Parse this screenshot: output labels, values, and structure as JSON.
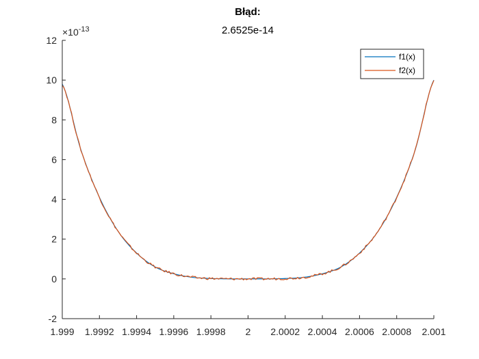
{
  "chart_data": {
    "type": "line",
    "title": "Błąd:",
    "subtitle": "2.6525e-14",
    "xlabel": "",
    "ylabel": "",
    "xlim": [
      1.999,
      2.001
    ],
    "ylim": [
      -2,
      12
    ],
    "y_exponent_label": "×10",
    "y_exponent_power": "-13",
    "x_ticks": [
      1.999,
      1.9992,
      1.9994,
      1.9996,
      1.9998,
      2,
      2.0002,
      2.0004,
      2.0006,
      2.0008,
      2.001
    ],
    "x_tick_labels": [
      "1.999",
      "1.9992",
      "1.9994",
      "1.9996",
      "1.9998",
      "2",
      "2.0002",
      "2.0004",
      "2.0006",
      "2.0008",
      "2.001"
    ],
    "y_ticks": [
      -2,
      0,
      2,
      4,
      6,
      8,
      10,
      12
    ],
    "y_tick_labels": [
      "-2",
      "0",
      "2",
      "4",
      "6",
      "8",
      "10",
      "12"
    ],
    "grid": false,
    "legend_position": "top-right",
    "colors": {
      "f1": "#0072BD",
      "f2": "#D95319",
      "axis": "#262626"
    },
    "series": [
      {
        "name": "f1(x)",
        "color": "#0072BD",
        "x": [
          1.999,
          1.9991,
          1.9992,
          1.9993,
          1.9994,
          1.9995,
          1.9996,
          1.9997,
          1.9998,
          1.9999,
          2.0,
          2.0001,
          2.0002,
          2.0003,
          2.0004,
          2.0005,
          2.0006,
          2.0007,
          2.0008,
          2.0009,
          2.001
        ],
        "values": [
          9.8,
          6.5,
          4.1,
          2.4,
          1.3,
          0.6,
          0.26,
          0.08,
          0.02,
          0.0,
          0.0,
          0.0,
          0.02,
          0.08,
          0.26,
          0.6,
          1.3,
          2.4,
          4.1,
          6.5,
          10.0
        ]
      },
      {
        "name": "f2(x)",
        "color": "#D95319",
        "x": [
          1.999,
          1.9991,
          1.9992,
          1.9993,
          1.9994,
          1.9995,
          1.9996,
          1.9997,
          1.9998,
          1.9999,
          2.0,
          2.0001,
          2.0002,
          2.0003,
          2.0004,
          2.0005,
          2.0006,
          2.0007,
          2.0008,
          2.0009,
          2.001
        ],
        "values": [
          9.8,
          6.5,
          4.1,
          2.4,
          1.3,
          0.6,
          0.26,
          0.08,
          0.02,
          0.0,
          0.0,
          0.0,
          0.02,
          0.08,
          0.26,
          0.6,
          1.3,
          2.4,
          4.1,
          6.5,
          10.0
        ]
      }
    ]
  }
}
